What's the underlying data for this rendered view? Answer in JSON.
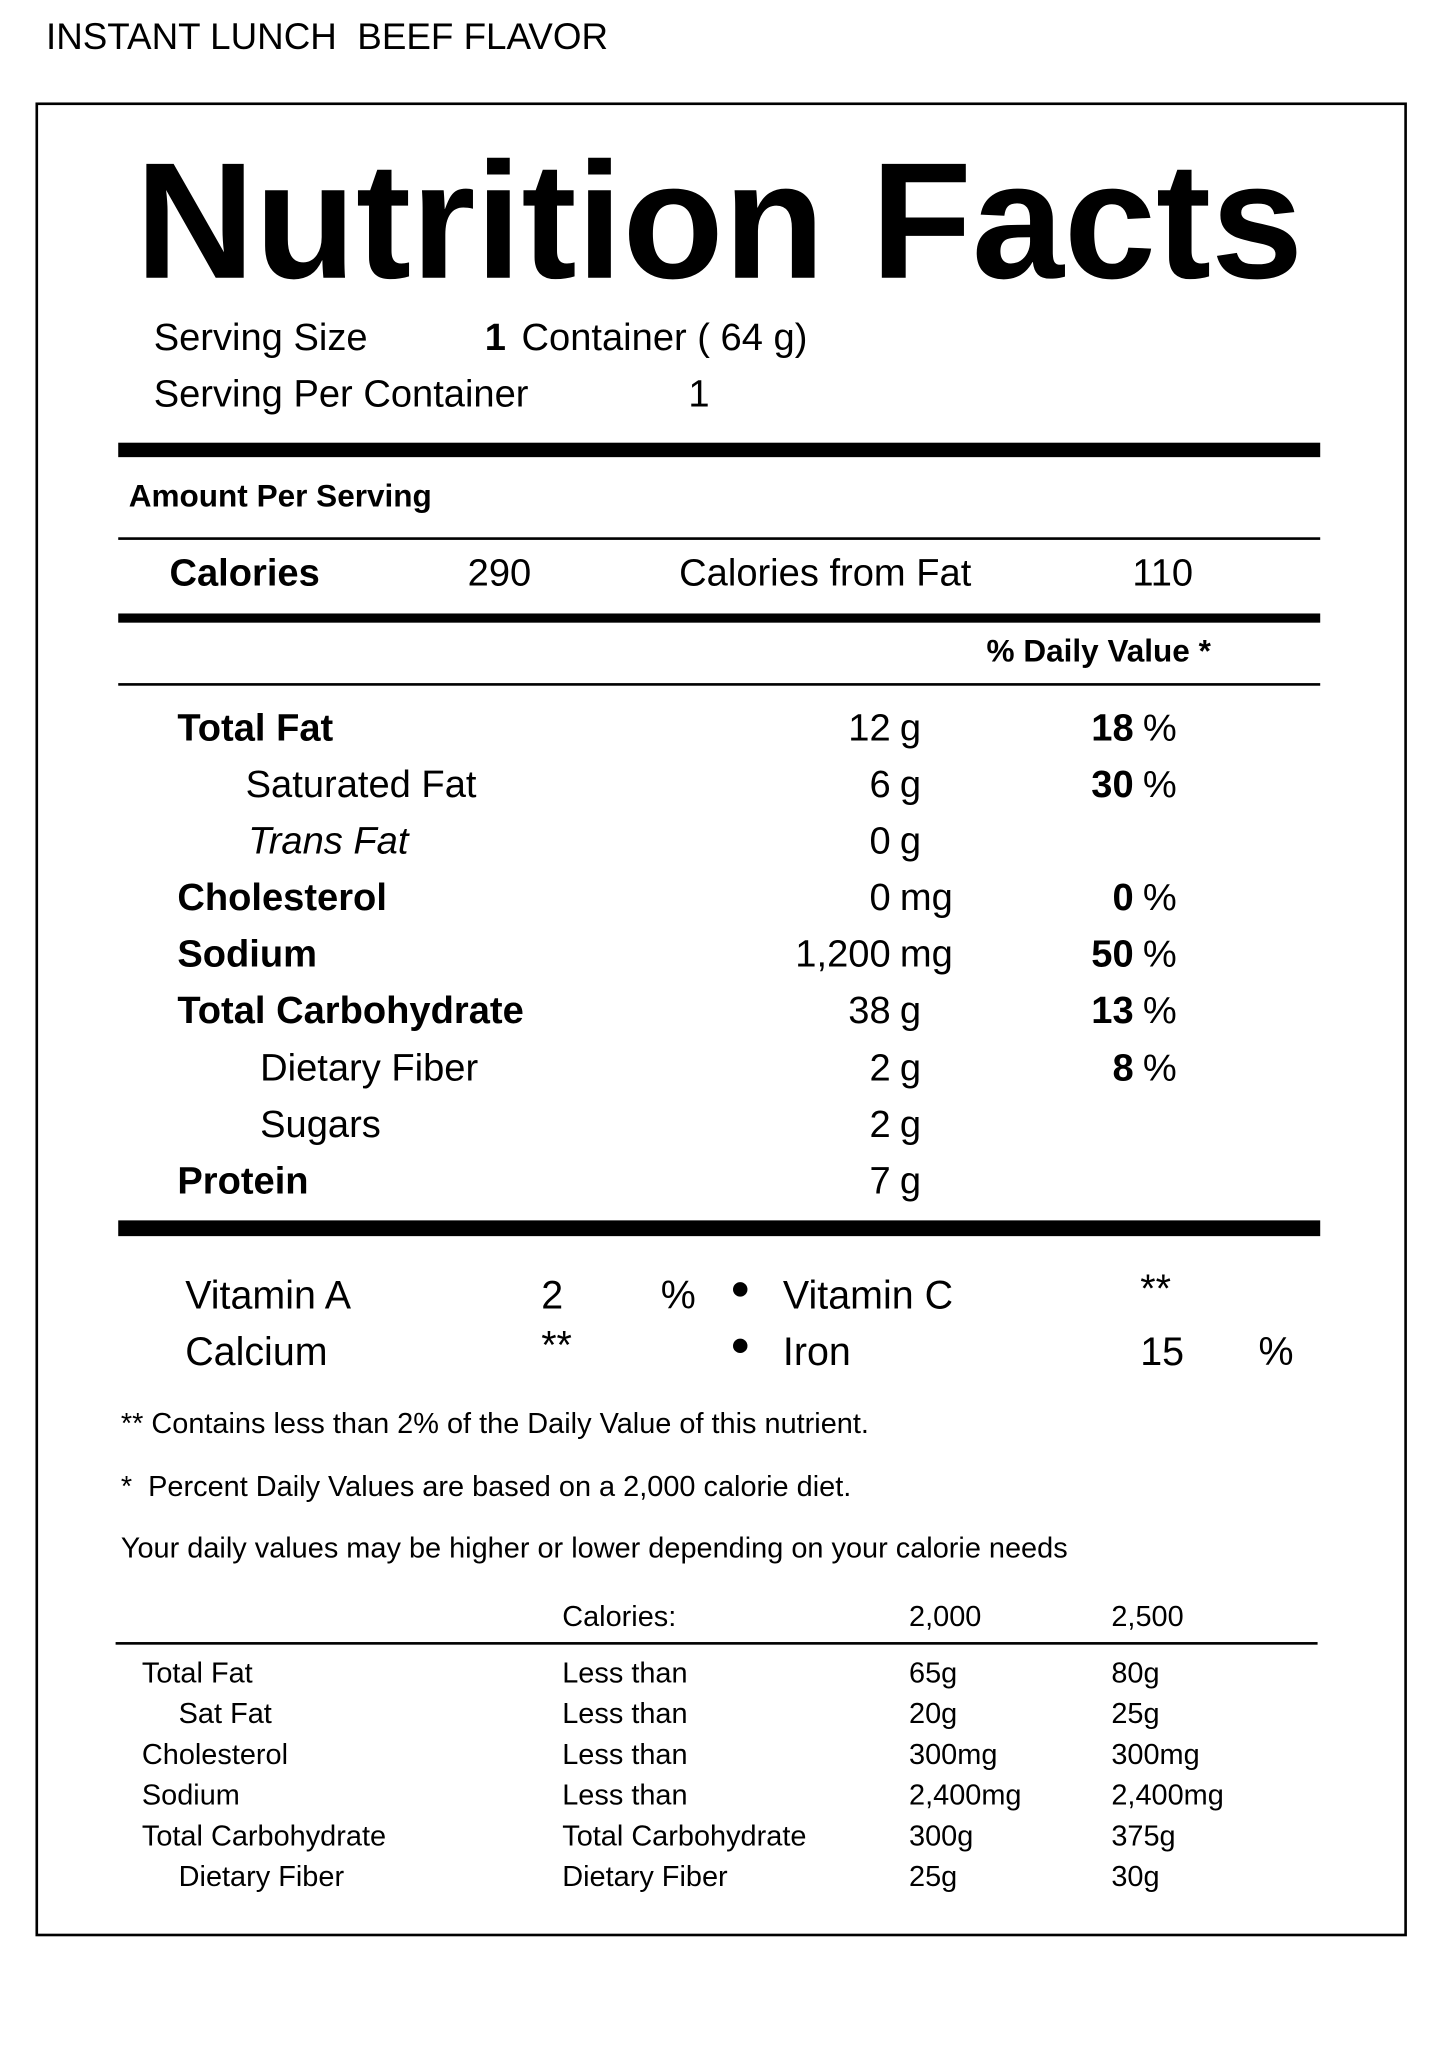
{
  "header": {
    "product": "INSTANT LUNCH  BEEF FLAVOR"
  },
  "label": {
    "title": "Nutrition Facts",
    "serving_size": {
      "label": "Serving Size",
      "amount": "1",
      "unit": "Container ( 64 g)"
    },
    "servings_per_container": {
      "label": "Serving Per Container",
      "value": "1"
    },
    "amount_per_serving": "Amount Per Serving",
    "calories": {
      "label": "Calories",
      "value": "290",
      "from_fat_label": "Calories from Fat",
      "from_fat_value": "110"
    },
    "daily_value_header": "% Daily Value *",
    "nutrients": [
      {
        "name": "Total Fat",
        "amount": "12",
        "unit": "g",
        "dv": "18",
        "dv_unit": "%"
      },
      {
        "name": "Saturated Fat",
        "amount": "6",
        "unit": "g",
        "dv": "30",
        "dv_unit": "%"
      },
      {
        "name": "Trans Fat",
        "amount": "0",
        "unit": "g"
      },
      {
        "name": "Cholesterol",
        "amount": "0",
        "unit": "mg",
        "dv": "0",
        "dv_unit": "%"
      },
      {
        "name": "Sodium",
        "amount": "1,200",
        "unit": "mg",
        "dv": "50",
        "dv_unit": "%"
      },
      {
        "name": "Total Carbohydrate",
        "amount": "38",
        "unit": "g",
        "dv": "13",
        "dv_unit": "%"
      },
      {
        "name": "Dietary Fiber",
        "amount": "2",
        "unit": "g",
        "dv": "8",
        "dv_unit": "%"
      },
      {
        "name": "Sugars",
        "amount": "2",
        "unit": "g"
      },
      {
        "name": "Protein",
        "amount": "7",
        "unit": "g"
      }
    ],
    "vitamins": [
      [
        {
          "name": "Vitamin A",
          "value": "2",
          "unit": "%"
        },
        {
          "name": "Vitamin C",
          "value": "**"
        }
      ],
      [
        {
          "name": "Calcium",
          "value": "**"
        },
        {
          "name": "Iron",
          "value": "15",
          "unit": "%"
        }
      ]
    ],
    "footnotes": [
      "** Contains less than 2% of the Daily Value of this nutrient.",
      "*  Percent Daily Values are based on a 2,000 calorie diet.",
      "Your daily values may be higher or lower depending on your calorie needs"
    ],
    "reference_table": {
      "header": [
        "Calories:",
        "2,000",
        "2,500"
      ],
      "rows": [
        [
          "Total Fat",
          "Less than",
          "65g",
          "80g"
        ],
        [
          "Sat Fat",
          "Less than",
          "20g",
          "25g"
        ],
        [
          "Cholesterol",
          "Less than",
          "300mg",
          "300mg"
        ],
        [
          "Sodium",
          "Less than",
          "2,400mg",
          "2,400mg"
        ],
        [
          "Total Carbohydrate",
          "Total Carbohydrate",
          "300g",
          "375g"
        ],
        [
          "Dietary Fiber",
          "Dietary Fiber",
          "25g",
          "30g"
        ]
      ]
    }
  }
}
